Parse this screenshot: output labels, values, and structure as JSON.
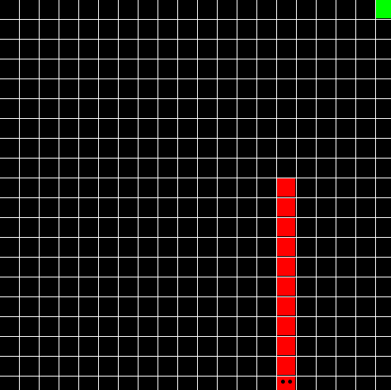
{
  "grid": {
    "columns": 20,
    "rows": 20,
    "background_color": "#000000",
    "line_color": "#ffffff"
  },
  "snake": {
    "color": "#ff0000",
    "eye_color": "#000000",
    "direction": "down",
    "head": {
      "col": 14,
      "row": 19
    },
    "body": [
      {
        "col": 14,
        "row": 18
      },
      {
        "col": 14,
        "row": 17
      },
      {
        "col": 14,
        "row": 16
      },
      {
        "col": 14,
        "row": 15
      },
      {
        "col": 14,
        "row": 14
      },
      {
        "col": 14,
        "row": 13
      },
      {
        "col": 14,
        "row": 12
      },
      {
        "col": 14,
        "row": 11
      },
      {
        "col": 14,
        "row": 10
      },
      {
        "col": 14,
        "row": 9
      }
    ]
  },
  "food": {
    "col": 19,
    "row": 0,
    "color": "#00ff00"
  }
}
